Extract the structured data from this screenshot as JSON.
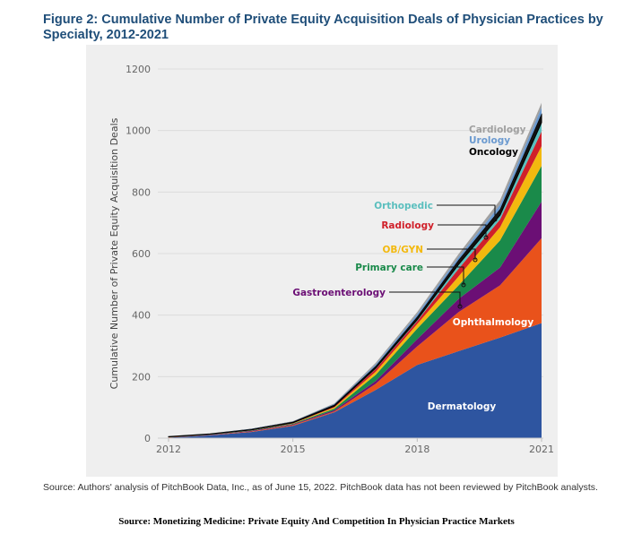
{
  "title": "Figure 2: Cumulative Number of Private Equity Acquisition Deals of Physician Practices by Specialty, 2012-2021",
  "note": "Source: Authors' analysis of PitchBook Data, Inc., as of June 15, 2022. PitchBook data has not been reviewed by PitchBook analysts.",
  "source": "Source: Monetizing Medicine: Private Equity And Competition In Physician Practice Markets",
  "chart_data": {
    "type": "area",
    "stacked": true,
    "title": "",
    "xlabel": "",
    "ylabel": "Cumulative Number of Private Equity Acquisition Deals",
    "x": [
      2012,
      2013,
      2014,
      2015,
      2016,
      2017,
      2018,
      2019,
      2020,
      2021
    ],
    "xticks": [
      "2012",
      "2015",
      "2018",
      "2021"
    ],
    "yticks": [
      "0",
      "200",
      "400",
      "600",
      "800",
      "1000",
      "1200"
    ],
    "ylim": [
      0,
      1200
    ],
    "grid": true,
    "series": [
      {
        "name": "Dermatology",
        "color": "#2e55a0",
        "values": [
          2,
          9,
          20,
          40,
          84,
          157,
          238,
          283,
          327,
          374
        ]
      },
      {
        "name": "Ophthalmology",
        "color": "#e9521b",
        "values": [
          1,
          1,
          2,
          3,
          3,
          20,
          60,
          127,
          170,
          276
        ]
      },
      {
        "name": "Gastroenterology",
        "color": "#6b0f75",
        "values": [
          0,
          1,
          2,
          2,
          4,
          9,
          24,
          43,
          58,
          119
        ]
      },
      {
        "name": "Primary care",
        "color": "#1a8a4a",
        "values": [
          1,
          1,
          1,
          2,
          5,
          20,
          34,
          44,
          88,
          116
        ]
      },
      {
        "name": "OB/GYN",
        "color": "#f3b90f",
        "values": [
          0,
          0,
          1,
          1,
          4,
          10,
          15,
          29,
          43,
          64
        ]
      },
      {
        "name": "Radiology",
        "color": "#d0202a",
        "values": [
          0,
          1,
          1,
          1,
          3,
          9,
          10,
          25,
          25,
          48
        ]
      },
      {
        "name": "Orthopedic",
        "color": "#5bbfbe",
        "values": [
          0,
          0,
          0,
          1,
          1,
          3,
          4,
          14,
          14,
          29
        ]
      },
      {
        "name": "Oncology",
        "color": "#111111",
        "values": [
          1,
          1,
          2,
          3,
          5,
          7,
          10,
          15,
          20,
          29
        ]
      },
      {
        "name": "Urology",
        "color": "#6b9ad0",
        "values": [
          0,
          0,
          1,
          1,
          2,
          5,
          8,
          9,
          14,
          20
        ]
      },
      {
        "name": "Cardiology",
        "color": "#a0a0a0",
        "values": [
          0,
          0,
          0,
          1,
          2,
          5,
          7,
          10,
          15,
          15
        ]
      }
    ]
  }
}
